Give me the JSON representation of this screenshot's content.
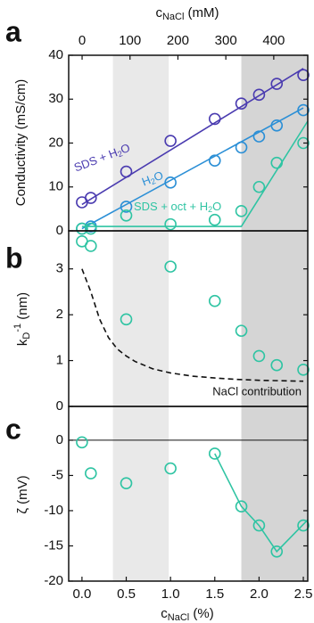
{
  "chart_data": [
    {
      "type": "scatter",
      "panel": "a",
      "ylabel": "Conductivity (mS/cm)",
      "xlim": [
        -0.15,
        2.55
      ],
      "ylim": [
        0,
        40
      ],
      "yticks": [
        0,
        10,
        20,
        30,
        40
      ],
      "x2label": [
        "c",
        "NaCl",
        " (mM)"
      ],
      "x2lim": [
        -28,
        471
      ],
      "x2ticks": [
        0,
        100,
        200,
        300,
        400
      ],
      "shaded": [
        {
          "x": [
            0.35,
            0.98
          ],
          "color": "#e9e9e9"
        },
        {
          "x": [
            1.8,
            2.55
          ],
          "color": "#d5d5d5"
        }
      ],
      "annotations": [
        [
          "SDS + H",
          "2",
          "O"
        ],
        [
          "H",
          "2",
          "O"
        ],
        [
          "SDS + oct + H",
          "2",
          "O"
        ]
      ],
      "series": [
        {
          "mode": "markers",
          "color": "#4a3bb0",
          "x": [
            0,
            0.1,
            0.5,
            1.0,
            1.5,
            1.8,
            2.0,
            2.2,
            2.5
          ],
          "values": [
            6.5,
            7.5,
            13.5,
            20.5,
            25.5,
            29,
            31,
            33.5,
            35.5
          ]
        },
        {
          "mode": "line",
          "color": "#4a3bb0",
          "x": [
            0,
            2.5
          ],
          "values": [
            6,
            37
          ]
        },
        {
          "mode": "markers",
          "color": "#2b8fd6",
          "x": [
            0,
            0.1,
            0.5,
            1.0,
            1.5,
            1.8,
            2.0,
            2.2,
            2.5
          ],
          "values": [
            0.5,
            1,
            5.5,
            11,
            16,
            19,
            21.5,
            24,
            27.5
          ]
        },
        {
          "mode": "line",
          "color": "#2b8fd6",
          "x": [
            0,
            2.5
          ],
          "values": [
            0.5,
            28
          ]
        },
        {
          "mode": "markers",
          "color": "#2fc4a3",
          "x": [
            0,
            0.1,
            0.5,
            1.0,
            1.5,
            1.8,
            2.0,
            2.2,
            2.5
          ],
          "values": [
            0.5,
            0.5,
            3.5,
            1.5,
            2.5,
            4.5,
            10,
            15.5,
            20
          ]
        },
        {
          "mode": "line",
          "color": "#2fc4a3",
          "x": [
            0,
            1.8,
            2.55
          ],
          "values": [
            1,
            1,
            25
          ]
        }
      ]
    },
    {
      "type": "scatter",
      "panel": "b",
      "ylabel": [
        "k",
        "D",
        "-1",
        " (nm)"
      ],
      "xlim": [
        -0.15,
        2.55
      ],
      "ylim": [
        0,
        3.83
      ],
      "yticks": [
        0,
        1,
        2,
        3
      ],
      "shaded": [
        {
          "x": [
            0.35,
            0.98
          ],
          "color": "#e9e9e9"
        },
        {
          "x": [
            1.8,
            2.55
          ],
          "color": "#d5d5d5"
        }
      ],
      "annotations": [
        "NaCl contribution"
      ],
      "series": [
        {
          "mode": "markers",
          "color": "#2fc4a3",
          "x": [
            0,
            0.1,
            0.5,
            1.0,
            1.5,
            1.8,
            2.0,
            2.2,
            2.5
          ],
          "values": [
            3.6,
            3.5,
            1.9,
            3.05,
            2.3,
            1.65,
            1.1,
            0.9,
            0.8
          ]
        },
        {
          "mode": "dashed",
          "color": "#111111",
          "x": [
            0,
            0.1,
            0.2,
            0.3,
            0.4,
            0.5,
            0.6,
            0.8,
            1.0,
            1.25,
            1.5,
            1.75,
            2.0,
            2.25,
            2.5
          ],
          "values": [
            3.0,
            2.5,
            1.9,
            1.5,
            1.25,
            1.1,
            0.98,
            0.82,
            0.73,
            0.66,
            0.62,
            0.59,
            0.57,
            0.56,
            0.55
          ]
        }
      ]
    },
    {
      "type": "scatter",
      "panel": "c",
      "ylabel": "ζ (mV)",
      "xlim": [
        -0.15,
        2.55
      ],
      "ylim": [
        -20,
        4.8
      ],
      "yticks": [
        -20,
        -15,
        -10,
        -5,
        0
      ],
      "hline": 0,
      "xlabel": [
        "c",
        "NaCl",
        " (%)"
      ],
      "xticks": [
        {
          "value": 0,
          "label": "0.0"
        },
        {
          "value": 0.5,
          "label": "0.5"
        },
        {
          "value": 1,
          "label": "1.0"
        },
        {
          "value": 1.5,
          "label": "1.5"
        },
        {
          "value": 2,
          "label": "2.0"
        },
        {
          "value": 2.5,
          "label": "2.5"
        }
      ],
      "shaded": [
        {
          "x": [
            0.35,
            0.98
          ],
          "color": "#e9e9e9"
        },
        {
          "x": [
            1.8,
            2.55
          ],
          "color": "#d5d5d5"
        }
      ],
      "series": [
        {
          "mode": "markers",
          "color": "#2fc4a3",
          "x": [
            0,
            0.1,
            0.5,
            1.0,
            1.5,
            1.8,
            2.0,
            2.2,
            2.5
          ],
          "values": [
            -0.3,
            -4.7,
            -6.1,
            -4,
            -1.9,
            -9.4,
            -12.1,
            -15.8,
            -12.1
          ]
        },
        {
          "mode": "line",
          "color": "#2fc4a3",
          "x": [
            1.5,
            1.8,
            2.0,
            2.2,
            2.55
          ],
          "values": [
            -1.9,
            -9.4,
            -12.1,
            -15.8,
            -11.3
          ]
        }
      ]
    }
  ]
}
